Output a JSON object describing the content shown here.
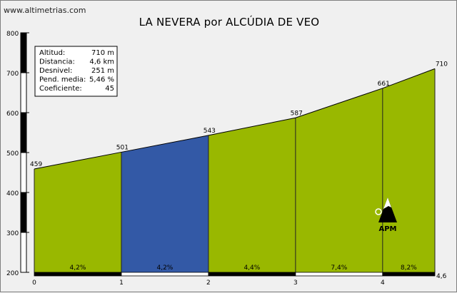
{
  "source": "www.altimetrias.com",
  "title": "LA NEVERA por ALCÚDIA DE VEO",
  "info_box": [
    {
      "label": "Altitud:",
      "value": "710 m"
    },
    {
      "label": "Distancia:",
      "value": "4,6 km"
    },
    {
      "label": "Desnivel:",
      "value": "251 m"
    },
    {
      "label": "Pend. media:",
      "value": "5,46 %"
    },
    {
      "label": "Coeficiente:",
      "value": "45"
    }
  ],
  "apm_label": "APM",
  "colors": {
    "green": "#99b800",
    "blue": "#3359a6",
    "grid": "#000000",
    "background": "#f0f0f0"
  },
  "chart_data": {
    "type": "area",
    "ylim": [
      200,
      800
    ],
    "yticks": [
      200,
      300,
      400,
      500,
      600,
      700,
      800
    ],
    "xlim": [
      0,
      4.6
    ],
    "xticks": [
      "0",
      "1",
      "2",
      "3",
      "4",
      "4,6"
    ],
    "xtick_values": [
      0,
      1,
      2,
      3,
      4,
      4.6
    ],
    "profile": {
      "x": [
        0,
        1,
        2,
        3,
        4,
        4.6
      ],
      "y": [
        459,
        501,
        543,
        587,
        661,
        710
      ],
      "labels": [
        "459",
        "501",
        "543",
        "587",
        "661",
        "710"
      ]
    },
    "segments": [
      {
        "from": 0,
        "to": 1,
        "gradient": "4,2%",
        "color": "green"
      },
      {
        "from": 1,
        "to": 2,
        "gradient": "4,2%",
        "color": "blue"
      },
      {
        "from": 2,
        "to": 3,
        "gradient": "4,4%",
        "color": "green"
      },
      {
        "from": 3,
        "to": 4,
        "gradient": "7,4%",
        "color": "green"
      },
      {
        "from": 4,
        "to": 4.6,
        "gradient": "8,2%",
        "color": "green"
      }
    ]
  }
}
